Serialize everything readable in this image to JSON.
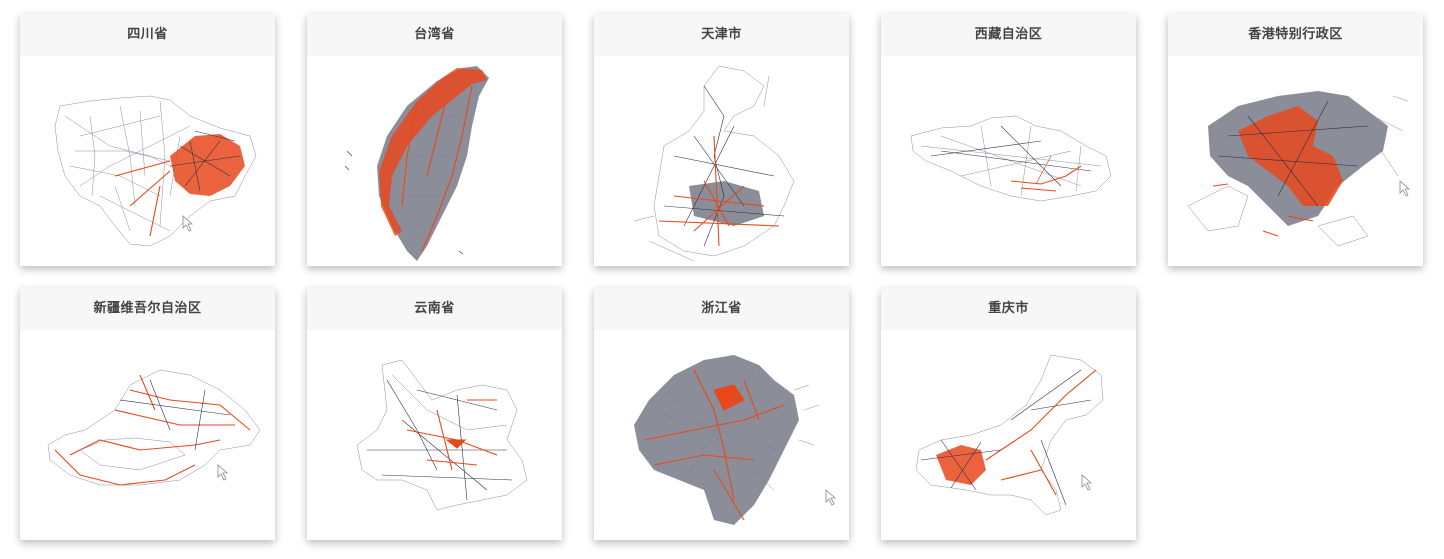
{
  "gallery": {
    "cards": [
      {
        "title": "四川省",
        "icon": "sichuan-road-map-thumbnail"
      },
      {
        "title": "台湾省",
        "icon": "taiwan-road-map-thumbnail"
      },
      {
        "title": "天津市",
        "icon": "tianjin-road-map-thumbnail"
      },
      {
        "title": "西藏自治区",
        "icon": "xizang-road-map-thumbnail"
      },
      {
        "title": "香港特别行政区",
        "icon": "hongkong-road-map-thumbnail"
      },
      {
        "title": "新疆维吾尔自治区",
        "icon": "xinjiang-road-map-thumbnail"
      },
      {
        "title": "云南省",
        "icon": "yunnan-road-map-thumbnail"
      },
      {
        "title": "浙江省",
        "icon": "zhejiang-road-map-thumbnail"
      },
      {
        "title": "重庆市",
        "icon": "chongqing-road-map-thumbnail"
      }
    ],
    "colors": {
      "road_dark": "#2b2f45",
      "road_highlight": "#e8481c",
      "title_bar": "#f7f7f8"
    }
  }
}
